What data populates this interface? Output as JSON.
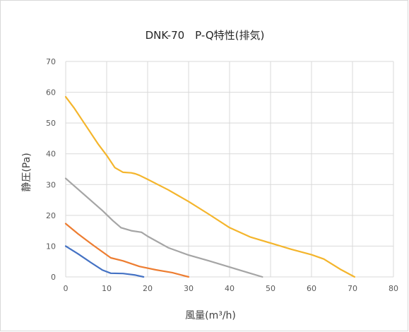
{
  "chart_data": {
    "type": "line",
    "title": "DNK-70　P-Q特性(排気)",
    "xlabel": "風量(m³/h)",
    "ylabel": "静圧(Pa)",
    "xlim": [
      0,
      80
    ],
    "ylim": [
      0,
      70
    ],
    "xticks": [
      "0",
      "10",
      "20",
      "30",
      "40",
      "50",
      "60",
      "70",
      "80"
    ],
    "yticks": [
      "0",
      "10",
      "20",
      "30",
      "40",
      "50",
      "60",
      "70"
    ],
    "grid": true,
    "legend": "none",
    "series": [
      {
        "color": "#4472C4",
        "x": [
          0,
          3,
          6,
          9,
          11,
          14,
          17,
          19
        ],
        "y": [
          10,
          7.5,
          4.8,
          2.2,
          1.2,
          1.1,
          0.6,
          0
        ]
      },
      {
        "color": "#ED7D31",
        "x": [
          0,
          3,
          7,
          11,
          14,
          18,
          22,
          26,
          30
        ],
        "y": [
          17.3,
          14,
          10,
          6.2,
          5.2,
          3.4,
          2.3,
          1.4,
          0
        ]
      },
      {
        "color": "#A5A5A5",
        "x": [
          0,
          3,
          6,
          9,
          11.5,
          13.5,
          16,
          18.5,
          20,
          25,
          30,
          35,
          40,
          45,
          48
        ],
        "y": [
          32,
          28.5,
          25,
          21.5,
          18.3,
          16,
          15,
          14.5,
          13.2,
          9.5,
          7.1,
          5.2,
          3.2,
          1.2,
          0
        ]
      },
      {
        "color": "#F4B52C",
        "x": [
          0,
          2,
          4,
          6,
          8,
          10,
          12,
          14,
          16,
          17,
          18,
          20,
          25,
          30,
          35,
          40,
          45,
          50,
          55,
          60,
          63,
          67,
          70.5
        ],
        "y": [
          58.5,
          55,
          51,
          47,
          43,
          39.5,
          35.5,
          34,
          33.8,
          33.5,
          33,
          31.7,
          28.3,
          24.5,
          20.3,
          16,
          13,
          11,
          9,
          7.2,
          5.8,
          2.5,
          0
        ]
      }
    ]
  }
}
